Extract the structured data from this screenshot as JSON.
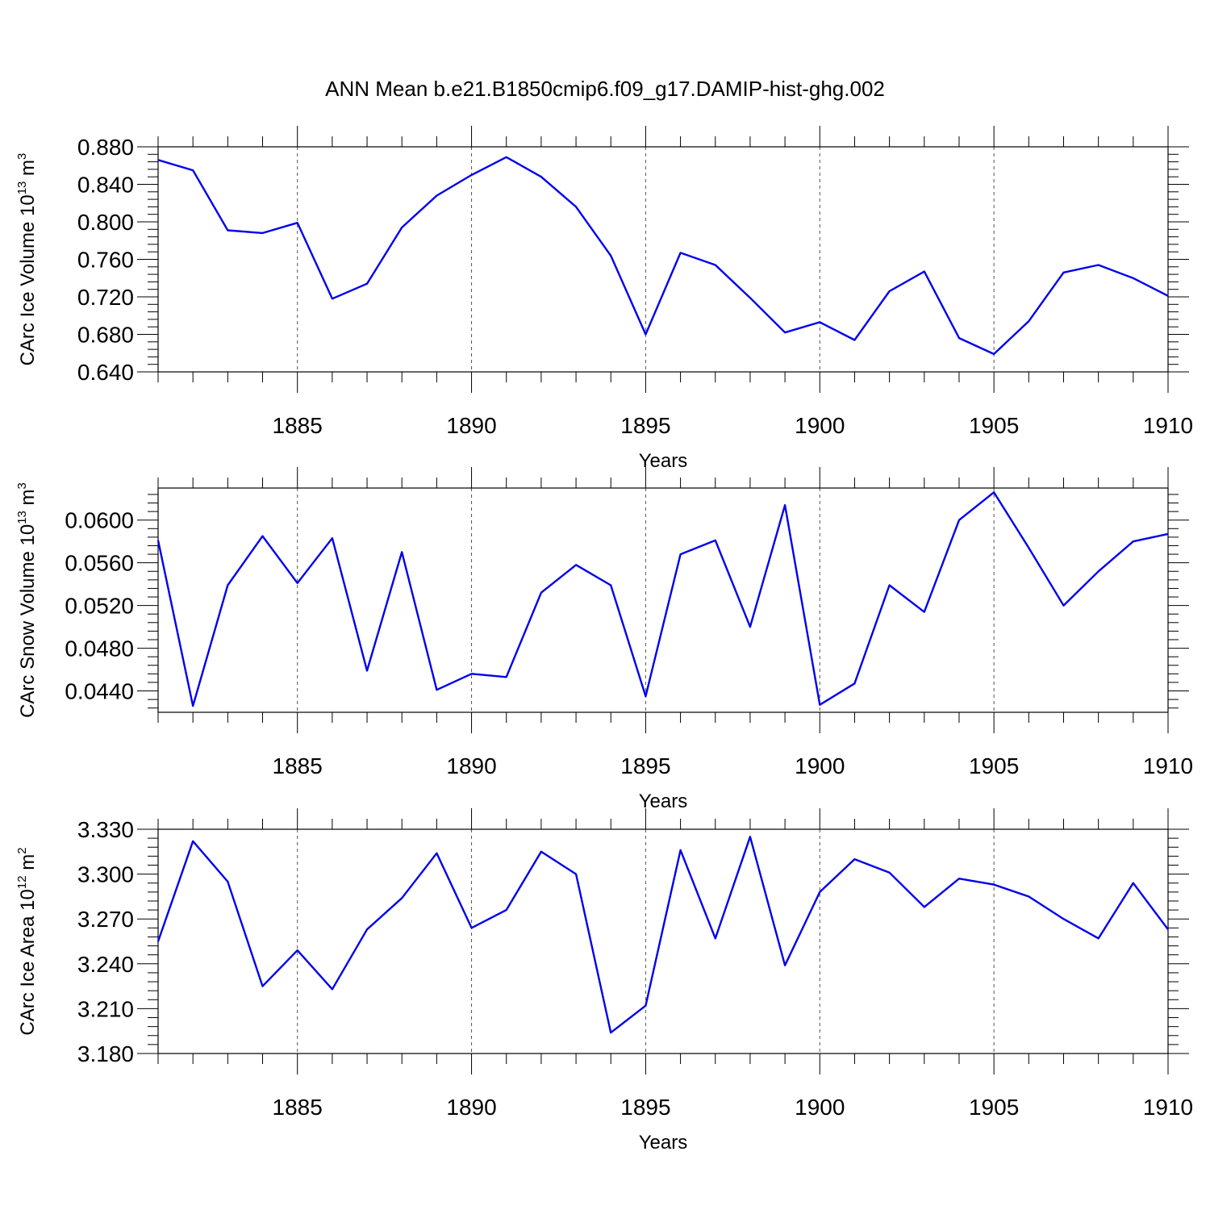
{
  "title": "ANN Mean b.e21.B1850cmip6.f09_g17.DAMIP-hist-ghg.002",
  "colors": {
    "line": "#0000ee",
    "axis": "#000000",
    "grid": "#555555"
  },
  "chart_data": [
    {
      "type": "line",
      "ylabel": {
        "text": "CArc Ice Volume 10",
        "exp": "13",
        "unit": " m",
        "unit_exp": "3"
      },
      "xlabel": "Years",
      "xlim": [
        1881,
        1910
      ],
      "ylim": [
        0.64,
        0.88
      ],
      "yticks": [
        0.64,
        0.68,
        0.72,
        0.76,
        0.8,
        0.84,
        0.88
      ],
      "ytick_labels": [
        "0.640",
        "0.680",
        "0.720",
        "0.760",
        "0.800",
        "0.840",
        "0.880"
      ],
      "xticks": [
        1885,
        1890,
        1895,
        1900,
        1905,
        1910
      ],
      "xtick_labels": [
        "1885",
        "1890",
        "1895",
        "1900",
        "1905",
        "1910"
      ],
      "x": [
        1881,
        1882,
        1883,
        1884,
        1885,
        1886,
        1887,
        1888,
        1889,
        1890,
        1891,
        1892,
        1893,
        1894,
        1895,
        1896,
        1897,
        1898,
        1899,
        1900,
        1901,
        1902,
        1903,
        1904,
        1905,
        1906,
        1907,
        1908,
        1909,
        1910
      ],
      "values": [
        0.866,
        0.855,
        0.791,
        0.788,
        0.799,
        0.718,
        0.734,
        0.794,
        0.828,
        0.85,
        0.869,
        0.848,
        0.816,
        0.764,
        0.68,
        0.767,
        0.754,
        0.719,
        0.682,
        0.693,
        0.674,
        0.726,
        0.747,
        0.676,
        0.659,
        0.694,
        0.746,
        0.754,
        0.74,
        0.721
      ]
    },
    {
      "type": "line",
      "ylabel": {
        "text": "CArc Snow Volume 10",
        "exp": "13",
        "unit": " m",
        "unit_exp": "3"
      },
      "xlabel": "Years",
      "xlim": [
        1881,
        1910
      ],
      "ylim": [
        0.042,
        0.063
      ],
      "yticks": [
        0.044,
        0.048,
        0.052,
        0.056,
        0.06
      ],
      "ytick_labels": [
        "0.0440",
        "0.0480",
        "0.0520",
        "0.0560",
        "0.0600"
      ],
      "xticks": [
        1885,
        1890,
        1895,
        1900,
        1905,
        1910
      ],
      "xtick_labels": [
        "1885",
        "1890",
        "1895",
        "1900",
        "1905",
        "1910"
      ],
      "x": [
        1881,
        1882,
        1883,
        1884,
        1885,
        1886,
        1887,
        1888,
        1889,
        1890,
        1891,
        1892,
        1893,
        1894,
        1895,
        1896,
        1897,
        1898,
        1899,
        1900,
        1901,
        1902,
        1903,
        1904,
        1905,
        1906,
        1907,
        1908,
        1909,
        1910
      ],
      "values": [
        0.0581,
        0.0426,
        0.0539,
        0.0585,
        0.0541,
        0.0583,
        0.0459,
        0.057,
        0.0441,
        0.0456,
        0.0453,
        0.0532,
        0.0558,
        0.0539,
        0.0435,
        0.0568,
        0.0581,
        0.05,
        0.0614,
        0.0427,
        0.0447,
        0.0539,
        0.0514,
        0.06,
        0.0626,
        0.0574,
        0.052,
        0.0552,
        0.058,
        0.0587
      ]
    },
    {
      "type": "line",
      "ylabel": {
        "text": "CArc Ice Area 10",
        "exp": "12",
        "unit": " m",
        "unit_exp": "2"
      },
      "xlabel": "Years",
      "xlim": [
        1881,
        1910
      ],
      "ylim": [
        3.18,
        3.33
      ],
      "yticks": [
        3.18,
        3.21,
        3.24,
        3.27,
        3.3,
        3.33
      ],
      "ytick_labels": [
        "3.180",
        "3.210",
        "3.240",
        "3.270",
        "3.300",
        "3.330"
      ],
      "xticks": [
        1885,
        1890,
        1895,
        1900,
        1905,
        1910
      ],
      "xtick_labels": [
        "1885",
        "1890",
        "1895",
        "1900",
        "1905",
        "1910"
      ],
      "x": [
        1881,
        1882,
        1883,
        1884,
        1885,
        1886,
        1887,
        1888,
        1889,
        1890,
        1891,
        1892,
        1893,
        1894,
        1895,
        1896,
        1897,
        1898,
        1899,
        1900,
        1901,
        1902,
        1903,
        1904,
        1905,
        1906,
        1907,
        1908,
        1909,
        1910
      ],
      "values": [
        3.255,
        3.322,
        3.295,
        3.225,
        3.249,
        3.223,
        3.263,
        3.284,
        3.314,
        3.264,
        3.276,
        3.315,
        3.3,
        3.194,
        3.212,
        3.316,
        3.257,
        3.325,
        3.239,
        3.288,
        3.31,
        3.301,
        3.278,
        3.297,
        3.293,
        3.285,
        3.27,
        3.257,
        3.294,
        3.263
      ]
    }
  ]
}
